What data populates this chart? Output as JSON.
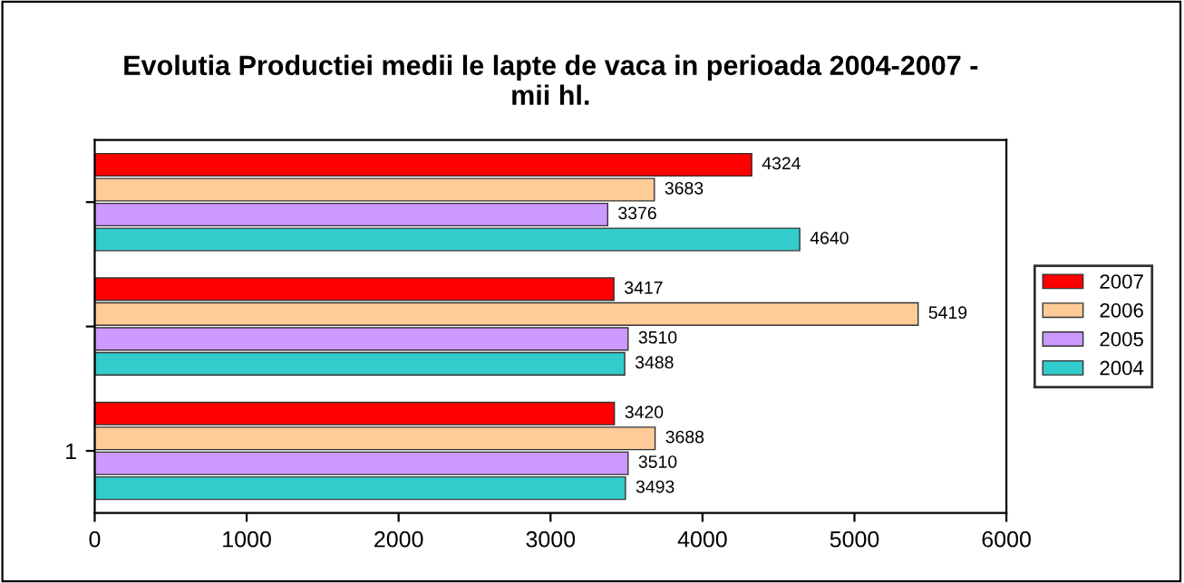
{
  "chart_data": {
    "type": "bar",
    "orientation": "horizontal",
    "title": "Evolutia Productiei medii le lapte de vaca in perioada 2004-2007 -\nmii hl.",
    "categories": [
      null,
      null,
      "1"
    ],
    "series": [
      {
        "name": "2007",
        "color": "#ff0000",
        "values": [
          4324,
          3417,
          3420
        ]
      },
      {
        "name": "2006",
        "color": "#ffcc99",
        "values": [
          3683,
          5419,
          3688
        ]
      },
      {
        "name": "2005",
        "color": "#cc99ff",
        "values": [
          3376,
          3510,
          3510
        ]
      },
      {
        "name": "2004",
        "color": "#33cccc",
        "values": [
          4640,
          3488,
          3493
        ]
      }
    ],
    "xlim": [
      0,
      6000
    ],
    "xticks": [
      0,
      1000,
      2000,
      3000,
      4000,
      5000,
      6000
    ],
    "data_labels": true,
    "legend": "right",
    "grid": false
  }
}
